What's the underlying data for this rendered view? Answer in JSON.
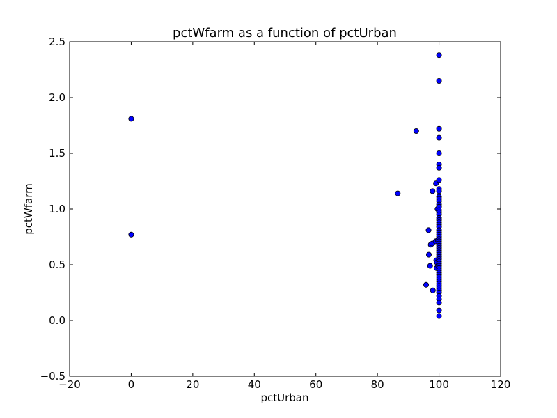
{
  "chart_data": {
    "type": "scatter",
    "title": "pctWfarm as a function of pctUrban",
    "xlabel": "pctUrban",
    "ylabel": "pctWfarm",
    "xlim": [
      -20,
      120
    ],
    "ylim": [
      -0.5,
      2.5
    ],
    "xticks": [
      -20,
      0,
      20,
      40,
      60,
      80,
      100,
      120
    ],
    "yticks": [
      -0.5,
      0.0,
      0.5,
      1.0,
      1.5,
      2.0,
      2.5
    ],
    "xtick_labels": [
      "−20",
      "0",
      "20",
      "40",
      "60",
      "80",
      "100",
      "120"
    ],
    "ytick_labels": [
      "−0.5",
      "0.0",
      "0.5",
      "1.0",
      "1.5",
      "2.0",
      "2.5"
    ],
    "grid": false,
    "marker_color": "#0000ff",
    "marker_edge_color": "#000000",
    "points": [
      [
        0,
        1.81
      ],
      [
        0,
        0.77
      ],
      [
        86.6,
        1.14
      ],
      [
        92.6,
        1.7
      ],
      [
        95.8,
        0.32
      ],
      [
        96.6,
        0.81
      ],
      [
        96.7,
        0.59
      ],
      [
        97.1,
        0.49
      ],
      [
        97.3,
        0.68
      ],
      [
        97.8,
        0.69
      ],
      [
        97.9,
        1.16
      ],
      [
        98.0,
        0.27
      ],
      [
        98.9,
        0.71
      ],
      [
        99.0,
        1.23
      ],
      [
        99.1,
        0.54
      ],
      [
        99.2,
        0.47
      ],
      [
        99.3,
        0.52
      ],
      [
        99.5,
        1.0
      ],
      [
        99.6,
        0.72
      ],
      [
        99.7,
        0.49
      ],
      [
        100,
        2.38
      ],
      [
        100,
        2.15
      ],
      [
        100,
        1.72
      ],
      [
        100,
        1.64
      ],
      [
        100,
        1.5
      ],
      [
        100,
        1.4
      ],
      [
        100,
        1.37
      ],
      [
        100,
        1.26
      ],
      [
        100,
        1.18
      ],
      [
        100,
        1.16
      ],
      [
        100,
        1.11
      ],
      [
        100,
        1.09
      ],
      [
        100,
        1.07
      ],
      [
        100,
        1.04
      ],
      [
        100,
        1.02
      ],
      [
        100,
        0.99
      ],
      [
        100,
        0.97
      ],
      [
        100,
        0.95
      ],
      [
        100,
        0.92
      ],
      [
        100,
        0.9
      ],
      [
        100,
        0.88
      ],
      [
        100,
        0.86
      ],
      [
        100,
        0.84
      ],
      [
        100,
        0.81
      ],
      [
        100,
        0.79
      ],
      [
        100,
        0.77
      ],
      [
        100,
        0.75
      ],
      [
        100,
        0.73
      ],
      [
        100,
        0.71
      ],
      [
        100,
        0.69
      ],
      [
        100,
        0.67
      ],
      [
        100,
        0.65
      ],
      [
        100,
        0.63
      ],
      [
        100,
        0.61
      ],
      [
        100,
        0.59
      ],
      [
        100,
        0.57
      ],
      [
        100,
        0.55
      ],
      [
        100,
        0.53
      ],
      [
        100,
        0.51
      ],
      [
        100,
        0.49
      ],
      [
        100,
        0.47
      ],
      [
        100,
        0.45
      ],
      [
        100,
        0.43
      ],
      [
        100,
        0.41
      ],
      [
        100,
        0.39
      ],
      [
        100,
        0.37
      ],
      [
        100,
        0.35
      ],
      [
        100,
        0.33
      ],
      [
        100,
        0.31
      ],
      [
        100,
        0.29
      ],
      [
        100,
        0.27
      ],
      [
        100,
        0.25
      ],
      [
        100,
        0.22
      ],
      [
        100,
        0.19
      ],
      [
        100,
        0.16
      ],
      [
        100,
        0.09
      ],
      [
        100,
        0.04
      ]
    ]
  }
}
